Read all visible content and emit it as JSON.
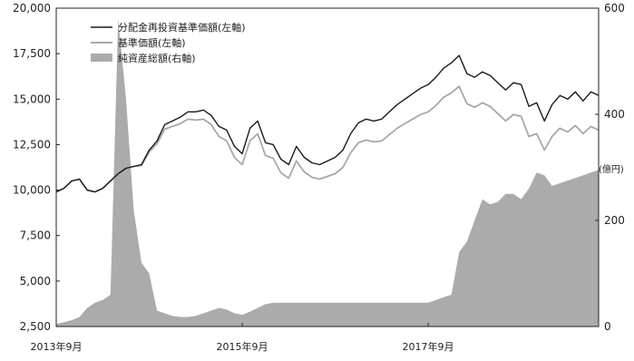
{
  "chart_data": {
    "type": "line",
    "title": "",
    "x_tick_labels": [
      "2013年9月",
      "2015年9月",
      "2017年9月"
    ],
    "x_tick_dates": [
      "2013-09",
      "2015-09",
      "2017-09"
    ],
    "x_range": [
      "2013-09",
      "2019-07"
    ],
    "left_axis": {
      "ticks": [
        "2,500",
        "5,000",
        "7,500",
        "10,000",
        "12,500",
        "15,000",
        "17,500",
        "20,000"
      ],
      "tick_values": [
        2500,
        5000,
        7500,
        10000,
        12500,
        15000,
        17500,
        20000
      ],
      "range": [
        2500,
        20000
      ]
    },
    "right_axis": {
      "unit_label": "(億円)",
      "ticks": [
        "0",
        "200",
        "400",
        "600"
      ],
      "tick_values": [
        0,
        200,
        400,
        600
      ],
      "range": [
        0,
        600
      ]
    },
    "legend_position": "top-left",
    "grid": false,
    "series": [
      {
        "name": "分配金再投資基準価額(左軸)",
        "kind": "line",
        "axis": "left",
        "color": "#1a1a1a",
        "points": [
          [
            "2013-09",
            9900
          ],
          [
            "2013-10",
            10100
          ],
          [
            "2013-11",
            10500
          ],
          [
            "2013-12",
            10600
          ],
          [
            "2014-01",
            10000
          ],
          [
            "2014-02",
            9900
          ],
          [
            "2014-03",
            10100
          ],
          [
            "2014-04",
            10500
          ],
          [
            "2014-05",
            10900
          ],
          [
            "2014-06",
            11200
          ],
          [
            "2014-07",
            11300
          ],
          [
            "2014-08",
            11400
          ],
          [
            "2014-09",
            12200
          ],
          [
            "2014-10",
            12700
          ],
          [
            "2014-11",
            13600
          ],
          [
            "2014-12",
            13800
          ],
          [
            "2015-01",
            14000
          ],
          [
            "2015-02",
            14300
          ],
          [
            "2015-03",
            14300
          ],
          [
            "2015-04",
            14400
          ],
          [
            "2015-05",
            14100
          ],
          [
            "2015-06",
            13500
          ],
          [
            "2015-07",
            13300
          ],
          [
            "2015-08",
            12400
          ],
          [
            "2015-09",
            12000
          ],
          [
            "2015-10",
            13400
          ],
          [
            "2015-11",
            13800
          ],
          [
            "2015-12",
            12600
          ],
          [
            "2016-01",
            12500
          ],
          [
            "2016-02",
            11700
          ],
          [
            "2016-03",
            11400
          ],
          [
            "2016-04",
            12400
          ],
          [
            "2016-05",
            11800
          ],
          [
            "2016-06",
            11500
          ],
          [
            "2016-07",
            11400
          ],
          [
            "2016-08",
            11600
          ],
          [
            "2016-09",
            11800
          ],
          [
            "2016-10",
            12200
          ],
          [
            "2016-11",
            13100
          ],
          [
            "2016-12",
            13700
          ],
          [
            "2017-01",
            13900
          ],
          [
            "2017-02",
            13800
          ],
          [
            "2017-03",
            13900
          ],
          [
            "2017-04",
            14300
          ],
          [
            "2017-05",
            14700
          ],
          [
            "2017-06",
            15000
          ],
          [
            "2017-07",
            15300
          ],
          [
            "2017-08",
            15600
          ],
          [
            "2017-09",
            15800
          ],
          [
            "2017-10",
            16200
          ],
          [
            "2017-11",
            16700
          ],
          [
            "2017-12",
            17000
          ],
          [
            "2018-01",
            17400
          ],
          [
            "2018-02",
            16400
          ],
          [
            "2018-03",
            16200
          ],
          [
            "2018-04",
            16500
          ],
          [
            "2018-05",
            16300
          ],
          [
            "2018-06",
            15900
          ],
          [
            "2018-07",
            15500
          ],
          [
            "2018-08",
            15900
          ],
          [
            "2018-09",
            15800
          ],
          [
            "2018-10",
            14600
          ],
          [
            "2018-11",
            14800
          ],
          [
            "2018-12",
            13800
          ],
          [
            "2019-01",
            14700
          ],
          [
            "2019-02",
            15200
          ],
          [
            "2019-03",
            15000
          ],
          [
            "2019-04",
            15400
          ],
          [
            "2019-05",
            14900
          ],
          [
            "2019-06",
            15400
          ],
          [
            "2019-07",
            15200
          ]
        ]
      },
      {
        "name": "基準価額(左軸)",
        "kind": "line",
        "axis": "left",
        "color": "#a8a8a8",
        "points": [
          [
            "2013-09",
            9900
          ],
          [
            "2013-10",
            10100
          ],
          [
            "2013-11",
            10500
          ],
          [
            "2013-12",
            10600
          ],
          [
            "2014-01",
            10000
          ],
          [
            "2014-02",
            9900
          ],
          [
            "2014-03",
            10100
          ],
          [
            "2014-04",
            10500
          ],
          [
            "2014-05",
            10900
          ],
          [
            "2014-06",
            11200
          ],
          [
            "2014-07",
            11300
          ],
          [
            "2014-08",
            11350
          ],
          [
            "2014-09",
            12100
          ],
          [
            "2014-10",
            12550
          ],
          [
            "2014-11",
            13350
          ],
          [
            "2014-12",
            13500
          ],
          [
            "2015-01",
            13650
          ],
          [
            "2015-02",
            13900
          ],
          [
            "2015-03",
            13850
          ],
          [
            "2015-04",
            13900
          ],
          [
            "2015-05",
            13600
          ],
          [
            "2015-06",
            12950
          ],
          [
            "2015-07",
            12700
          ],
          [
            "2015-08",
            11800
          ],
          [
            "2015-09",
            11400
          ],
          [
            "2015-10",
            12700
          ],
          [
            "2015-11",
            13100
          ],
          [
            "2015-12",
            11900
          ],
          [
            "2016-01",
            11750
          ],
          [
            "2016-02",
            10950
          ],
          [
            "2016-03",
            10650
          ],
          [
            "2016-04",
            11600
          ],
          [
            "2016-05",
            11000
          ],
          [
            "2016-06",
            10700
          ],
          [
            "2016-07",
            10600
          ],
          [
            "2016-08",
            10750
          ],
          [
            "2016-09",
            10900
          ],
          [
            "2016-10",
            11250
          ],
          [
            "2016-11",
            12050
          ],
          [
            "2016-12",
            12600
          ],
          [
            "2017-01",
            12750
          ],
          [
            "2017-02",
            12650
          ],
          [
            "2017-03",
            12700
          ],
          [
            "2017-04",
            13050
          ],
          [
            "2017-05",
            13400
          ],
          [
            "2017-06",
            13650
          ],
          [
            "2017-07",
            13900
          ],
          [
            "2017-08",
            14150
          ],
          [
            "2017-09",
            14300
          ],
          [
            "2017-10",
            14650
          ],
          [
            "2017-11",
            15100
          ],
          [
            "2017-12",
            15350
          ],
          [
            "2018-01",
            15700
          ],
          [
            "2018-02",
            14750
          ],
          [
            "2018-03",
            14550
          ],
          [
            "2018-04",
            14800
          ],
          [
            "2018-05",
            14600
          ],
          [
            "2018-06",
            14200
          ],
          [
            "2018-07",
            13800
          ],
          [
            "2018-08",
            14150
          ],
          [
            "2018-09",
            14050
          ],
          [
            "2018-10",
            12950
          ],
          [
            "2018-11",
            13100
          ],
          [
            "2018-12",
            12200
          ],
          [
            "2019-01",
            12950
          ],
          [
            "2019-02",
            13400
          ],
          [
            "2019-03",
            13200
          ],
          [
            "2019-04",
            13550
          ],
          [
            "2019-05",
            13100
          ],
          [
            "2019-06",
            13500
          ],
          [
            "2019-07",
            13300
          ]
        ]
      },
      {
        "name": "純資産総額(右軸)",
        "kind": "area",
        "axis": "right",
        "color": "#ababab",
        "points": [
          [
            "2013-09",
            5
          ],
          [
            "2013-10",
            8
          ],
          [
            "2013-11",
            12
          ],
          [
            "2013-12",
            18
          ],
          [
            "2014-01",
            35
          ],
          [
            "2014-02",
            45
          ],
          [
            "2014-03",
            50
          ],
          [
            "2014-04",
            60
          ],
          [
            "2014-05",
            580
          ],
          [
            "2014-06",
            430
          ],
          [
            "2014-07",
            220
          ],
          [
            "2014-08",
            120
          ],
          [
            "2014-09",
            100
          ],
          [
            "2014-10",
            30
          ],
          [
            "2014-11",
            25
          ],
          [
            "2014-12",
            20
          ],
          [
            "2015-01",
            18
          ],
          [
            "2015-02",
            18
          ],
          [
            "2015-03",
            20
          ],
          [
            "2015-04",
            25
          ],
          [
            "2015-05",
            30
          ],
          [
            "2015-06",
            35
          ],
          [
            "2015-07",
            32
          ],
          [
            "2015-08",
            25
          ],
          [
            "2015-09",
            22
          ],
          [
            "2015-10",
            28
          ],
          [
            "2015-11",
            35
          ],
          [
            "2015-12",
            42
          ],
          [
            "2016-01",
            45
          ],
          [
            "2016-02",
            45
          ],
          [
            "2016-03",
            45
          ],
          [
            "2016-04",
            45
          ],
          [
            "2016-05",
            45
          ],
          [
            "2016-06",
            45
          ],
          [
            "2016-07",
            45
          ],
          [
            "2016-08",
            45
          ],
          [
            "2016-09",
            45
          ],
          [
            "2016-10",
            45
          ],
          [
            "2016-11",
            45
          ],
          [
            "2016-12",
            45
          ],
          [
            "2017-01",
            45
          ],
          [
            "2017-02",
            45
          ],
          [
            "2017-03",
            45
          ],
          [
            "2017-04",
            45
          ],
          [
            "2017-05",
            45
          ],
          [
            "2017-06",
            45
          ],
          [
            "2017-07",
            45
          ],
          [
            "2017-08",
            45
          ],
          [
            "2017-09",
            45
          ],
          [
            "2017-10",
            50
          ],
          [
            "2017-11",
            55
          ],
          [
            "2017-12",
            60
          ],
          [
            "2018-01",
            140
          ],
          [
            "2018-02",
            160
          ],
          [
            "2018-03",
            200
          ],
          [
            "2018-04",
            240
          ],
          [
            "2018-05",
            230
          ],
          [
            "2018-06",
            235
          ],
          [
            "2018-07",
            250
          ],
          [
            "2018-08",
            250
          ],
          [
            "2018-09",
            240
          ],
          [
            "2018-10",
            260
          ],
          [
            "2018-11",
            290
          ],
          [
            "2018-12",
            285
          ],
          [
            "2019-01",
            265
          ],
          [
            "2019-02",
            270
          ],
          [
            "2019-03",
            275
          ],
          [
            "2019-04",
            280
          ],
          [
            "2019-05",
            285
          ],
          [
            "2019-06",
            290
          ],
          [
            "2019-07",
            295
          ]
        ]
      }
    ]
  }
}
